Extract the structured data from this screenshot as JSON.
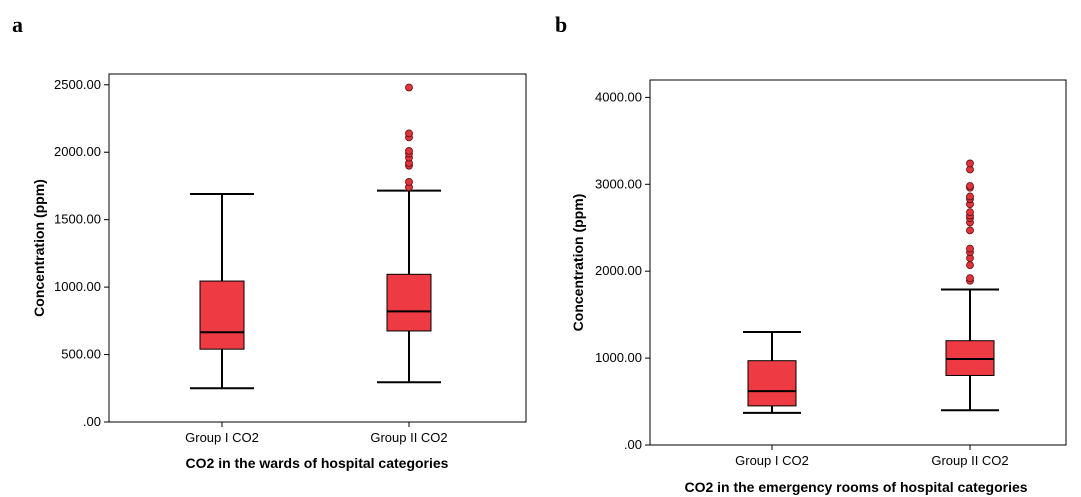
{
  "panel_labels": [
    "a",
    "b"
  ],
  "colors": {
    "box_fill": "#ee3a43",
    "outlier_fill": "#e2333b",
    "line": "#000000",
    "frame": "#000000"
  },
  "chart_data": [
    {
      "type": "boxplot",
      "panel": "a",
      "title": "",
      "xlabel": "CO2 in the wards of hospital categories",
      "ylabel": "Concentration (ppm)",
      "ylim": [
        0,
        2580
      ],
      "yticks": [
        0,
        500,
        1000,
        1500,
        2000,
        2500
      ],
      "ytick_labels": [
        ".00",
        "500.00",
        "1000.00",
        "1500.00",
        "2000.00",
        "2500.00"
      ],
      "categories": [
        "Group I CO2",
        "Group II CO2"
      ],
      "boxes": [
        {
          "whisker_low": 250,
          "q1": 540,
          "median": 665,
          "q3": 1045,
          "whisker_high": 1690,
          "outliers": []
        },
        {
          "whisker_low": 295,
          "q1": 675,
          "median": 820,
          "q3": 1095,
          "whisker_high": 1715,
          "outliers": [
            1740,
            1780,
            1900,
            1920,
            1960,
            1990,
            2010,
            2110,
            2140,
            2480
          ]
        }
      ]
    },
    {
      "type": "boxplot",
      "panel": "b",
      "title": "",
      "xlabel": "CO2  in the emergency rooms of hospital categories",
      "ylabel": "Concentration (ppm)",
      "ylim": [
        0,
        4200
      ],
      "yticks": [
        0,
        1000,
        2000,
        3000,
        4000
      ],
      "ytick_labels": [
        ".00",
        "1000.00",
        "2000.00",
        "3000.00",
        "4000.00"
      ],
      "categories": [
        "Group I CO2",
        "Group II CO2"
      ],
      "boxes": [
        {
          "whisker_low": 370,
          "q1": 450,
          "median": 620,
          "q3": 970,
          "whisker_high": 1300,
          "outliers": []
        },
        {
          "whisker_low": 400,
          "q1": 800,
          "median": 990,
          "q3": 1200,
          "whisker_high": 1790,
          "outliers": [
            1890,
            1920,
            2070,
            2150,
            2220,
            2260,
            2470,
            2560,
            2610,
            2640,
            2680,
            2770,
            2830,
            2860,
            2960,
            2980,
            3170,
            3240
          ]
        }
      ]
    }
  ]
}
